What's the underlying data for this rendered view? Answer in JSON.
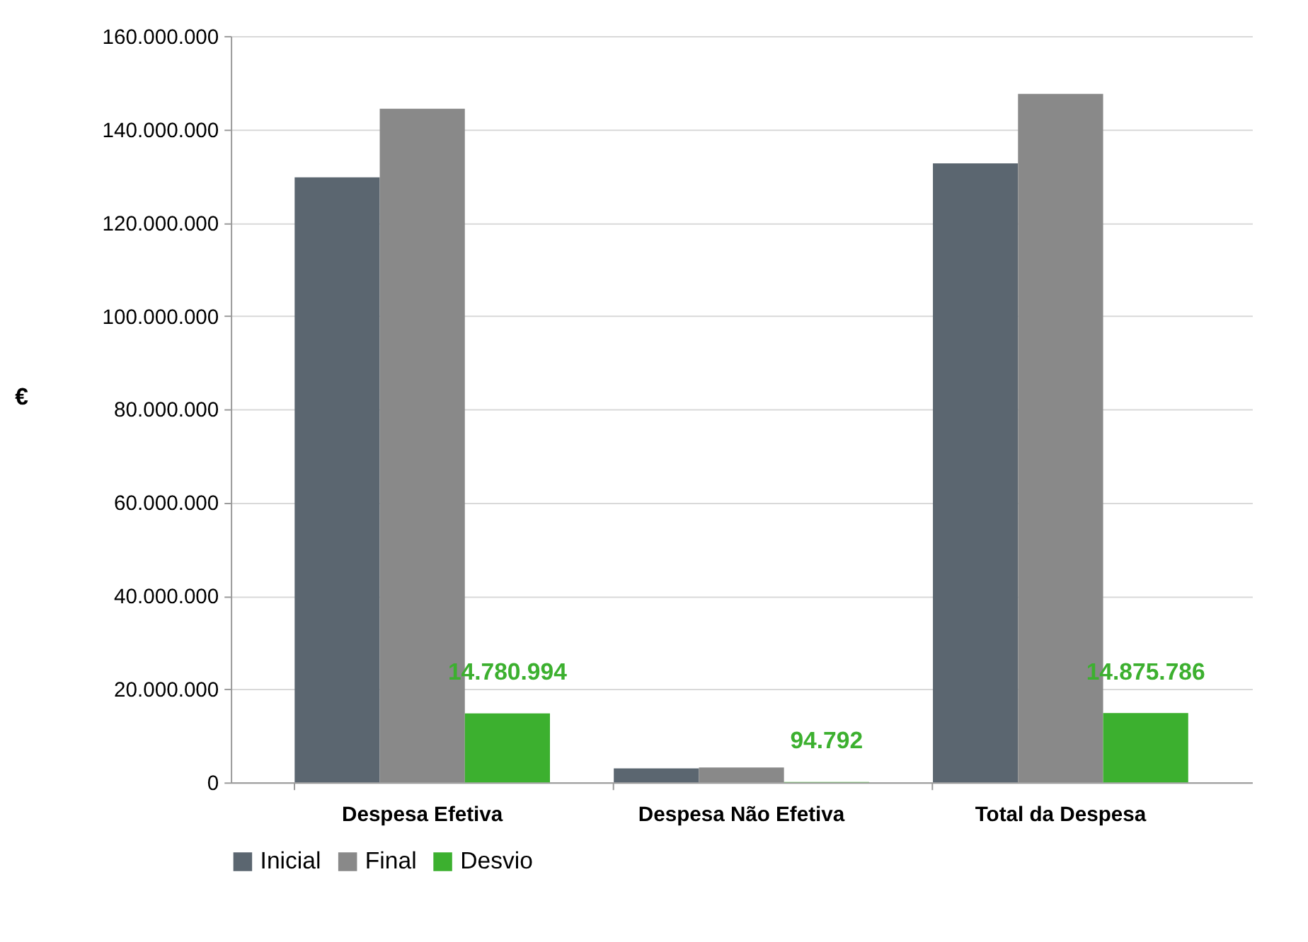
{
  "chart_data": {
    "type": "bar",
    "ylabel": "€",
    "categories": [
      "Despesa Efetiva",
      "Despesa Não Efetiva",
      "Total da Despesa"
    ],
    "series": [
      {
        "name": "Inicial",
        "color": "#5b6670",
        "values": [
          129700000,
          3000000,
          132700000
        ]
      },
      {
        "name": "Final",
        "color": "#898989",
        "values": [
          144400000,
          3200000,
          147600000
        ]
      },
      {
        "name": "Desvio",
        "color": "#3cb02f",
        "values": [
          14780994,
          94792,
          14875786
        ],
        "value_labels": [
          "14.780.994",
          "94.792",
          "14.875.786"
        ]
      }
    ],
    "ylim": [
      0,
      160000000
    ],
    "yticks": [
      0,
      {
        "value": 20000000,
        "label": "20.000.000"
      },
      {
        "value": 40000000,
        "label": "40.000.000"
      },
      {
        "value": 60000000,
        "label": "60.000.000"
      },
      {
        "value": 80000000,
        "label": "80.000.000"
      },
      {
        "value": 100000000,
        "label": "100.000.000"
      },
      {
        "value": 120000000,
        "label": "120.000.000"
      },
      {
        "value": 140000000,
        "label": "140.000.000"
      },
      {
        "value": 160000000,
        "label": "160.000.000"
      }
    ],
    "grid": "y",
    "legend": "bottom"
  }
}
